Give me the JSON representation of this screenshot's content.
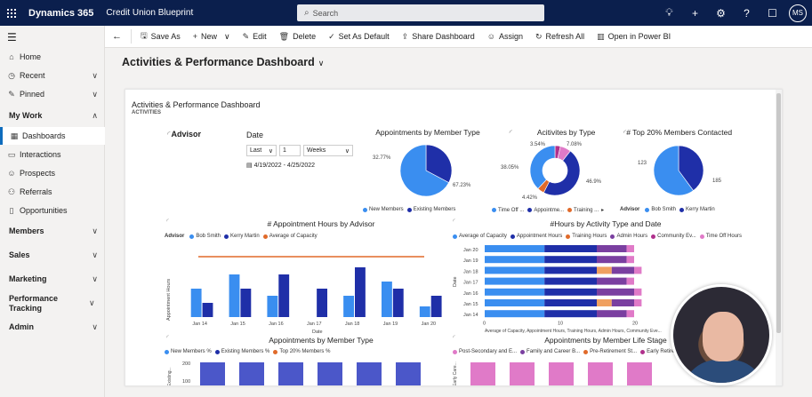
{
  "topbar": {
    "app_name": "Dynamics 365",
    "app_area": "Credit Union Blueprint",
    "search_placeholder": "Search",
    "avatar_initials": "MS"
  },
  "sidebar": {
    "items": [
      {
        "label": "Home",
        "icon": "home-icon"
      },
      {
        "label": "Recent",
        "icon": "clock-icon"
      },
      {
        "label": "Pinned",
        "icon": "pin-icon"
      }
    ],
    "my_work_label": "My Work",
    "my_work_items": [
      {
        "label": "Dashboards",
        "icon": "dashboard-icon"
      },
      {
        "label": "Interactions",
        "icon": "interaction-icon"
      },
      {
        "label": "Prospects",
        "icon": "person-icon"
      },
      {
        "label": "Referrals",
        "icon": "referral-icon"
      },
      {
        "label": "Opportunities",
        "icon": "document-icon"
      }
    ],
    "groups": [
      "Members",
      "Sales",
      "Marketing",
      "Performance Tracking",
      "Admin"
    ]
  },
  "commands": {
    "save_as": "Save As",
    "new": "New",
    "edit": "Edit",
    "delete": "Delete",
    "set_as_default": "Set As Default",
    "share_dashboard": "Share Dashboard",
    "assign": "Assign",
    "refresh_all": "Refresh All",
    "open_power_bi": "Open in Power BI"
  },
  "page_title": "Activities & Performance Dashboard",
  "dashboard": {
    "title": "Activities & Performance Dashboard",
    "subtitle": "ACTIVITIES",
    "advisor_label": "Advisor",
    "date_label": "Date",
    "date_mode": "Last",
    "date_count": "1",
    "date_unit": "Weeks",
    "date_range": "4/19/2022 - 4/25/2022"
  },
  "colors": {
    "light_blue": "#3a8ef0",
    "dark_blue": "#1f2fa8",
    "orange": "#e06a2a",
    "purple": "#7a3fa0",
    "magenta": "#b0308c",
    "salmon": "#f0a060",
    "pink": "#e07ac8"
  },
  "chart_data": [
    {
      "type": "pie",
      "title": "Appointments by Member Type",
      "labels": [
        "New Members",
        "Existing Members"
      ],
      "values": [
        32.77,
        67.23
      ],
      "value_labels": [
        "32.77%",
        "67.23%"
      ],
      "legend": "bottom"
    },
    {
      "type": "pie",
      "title": "Acitivites by Type",
      "labels": [
        "Time Off ...",
        "Appointme...",
        "Training ...",
        "",
        ""
      ],
      "values": [
        38.05,
        46.9,
        4.42,
        3.54,
        7.08
      ],
      "value_labels": [
        "38.05%",
        "46.9%",
        "4.42%",
        "3.54%",
        "7.08%"
      ],
      "legend": "bottom"
    },
    {
      "type": "pie",
      "title": "# Top 20% Members Contacted",
      "labels": [
        "Bob Smith",
        "Kerry Martin"
      ],
      "values": [
        123,
        185
      ],
      "value_labels": [
        "123",
        "185"
      ],
      "legend_title": "Advisor",
      "legend": "bottom"
    },
    {
      "type": "bar",
      "title": "# Appointment Hours by Advisor",
      "legend_title": "Advisor",
      "xlabel": "Date",
      "ylabel": "Appointment Hours",
      "categories": [
        "Jan 14",
        "Jan 15",
        "Jan 16",
        "Jan 17",
        "Jan 18",
        "Jan 19",
        "Jan 20"
      ],
      "x_ticks": [
        "Jan 14",
        "Jan 16",
        "Jan 18",
        "Jan 20"
      ],
      "series": [
        {
          "name": "Bob Smith",
          "values": [
            3.2,
            4.8,
            2.4,
            0,
            2.4,
            4.0,
            1.2
          ]
        },
        {
          "name": "Kerry Martin",
          "values": [
            1.6,
            3.2,
            4.8,
            3.2,
            5.6,
            3.2,
            2.4
          ]
        }
      ],
      "reference_line": {
        "name": "Average of Capacity",
        "value": 6.8
      },
      "ylim": [
        0,
        8
      ]
    },
    {
      "type": "bar",
      "title": "#Hours by Activity Type and Date",
      "orientation": "horizontal-stacked",
      "xlabel": "Average of Capacity, Appointment Hours, Training Hours, Admin Hours, Community Eve...",
      "ylabel": "Date",
      "categories": [
        "Jan 20",
        "Jan 19",
        "Jan 18",
        "Jan 17",
        "Jan 16",
        "Jan 15",
        "Jan 14"
      ],
      "x_ticks": [
        "0",
        "10",
        "20"
      ],
      "series": [
        {
          "name": "Average of Capacity",
          "values": [
            8,
            8,
            8,
            8,
            8,
            8,
            8
          ]
        },
        {
          "name": "Appointment Hours",
          "values": [
            7,
            7,
            7,
            7,
            7,
            7,
            7
          ]
        },
        {
          "name": "Training Hours",
          "values": [
            0,
            0,
            2,
            0,
            0,
            2,
            0
          ]
        },
        {
          "name": "Admin Hours",
          "values": [
            4,
            4,
            3,
            4,
            5,
            3,
            4
          ]
        },
        {
          "name": "Community Ev...",
          "values": [
            0,
            0,
            0,
            0,
            0,
            0,
            0
          ]
        },
        {
          "name": "Time Off Hours",
          "values": [
            1,
            1,
            1,
            1,
            1,
            1,
            1
          ]
        }
      ],
      "xlim": [
        0,
        25
      ]
    },
    {
      "type": "bar",
      "title": "Appointments by Member Type",
      "legend": [
        "New Members %",
        "Existing Members %",
        "Top 20% Members %"
      ],
      "y_ticks": [
        "200",
        "100"
      ],
      "ylabel": "Existing..."
    },
    {
      "type": "bar",
      "title": "Appointments by Member Life Stage",
      "legend": [
        "Post-Secondary and E...",
        "Family and Career B...",
        "Pre-Retirement St...",
        "Early Retireme..."
      ],
      "y_ticks": [
        "200",
        "100"
      ],
      "ylabel": "Early Care..."
    }
  ]
}
